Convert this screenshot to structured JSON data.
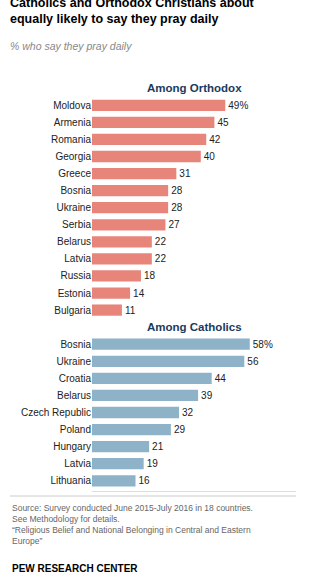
{
  "chart_data": {
    "type": "bar",
    "orientation": "horizontal",
    "title": "Catholics and Orthodox Christians about\nequally likely to say they pray daily",
    "subtitle": "% who say they pray daily",
    "annotations": [
      "Source: Survey conducted June 2015-July 2016 in 18 countries.\nSee Methodology for details.\n“Religious Belief and National Belonging in Central and Eastern\nEurope”",
      "PEW RESEARCH CENTER"
    ],
    "categories": [
      "Moldova",
      "Armenia",
      "Romania",
      "Georgia",
      "Greece",
      "Bosnia",
      "Ukraine",
      "Serbia",
      "Belarus",
      "Latvia",
      "Russia",
      "Estonia",
      "Bulgaria",
      "Bosnia",
      "Ukraine",
      "Croatia",
      "Belarus",
      "Czech Republic",
      "Poland",
      "Hungary",
      "Latvia",
      "Lithuania"
    ],
    "series": [
      {
        "name": "Among Orthodox",
        "color": "#E8857A",
        "values": [
          49,
          45,
          42,
          40,
          31,
          28,
          28,
          27,
          22,
          22,
          18,
          14,
          11,
          null,
          null,
          null,
          null,
          null,
          null,
          null,
          null,
          null
        ],
        "value_labels": [
          "49%",
          "45",
          "42",
          "40",
          "31",
          "28",
          "28",
          "27",
          "22",
          "22",
          "18",
          "14",
          "11",
          null,
          null,
          null,
          null,
          null,
          null,
          null,
          null,
          null
        ]
      },
      {
        "name": "Among Catholics",
        "color": "#8EB3C8",
        "values": [
          null,
          null,
          null,
          null,
          null,
          null,
          null,
          null,
          null,
          null,
          null,
          null,
          null,
          58,
          56,
          44,
          39,
          32,
          29,
          21,
          19,
          16
        ],
        "value_labels": [
          null,
          null,
          null,
          null,
          null,
          null,
          null,
          null,
          null,
          null,
          null,
          null,
          null,
          "58%",
          "56",
          "44",
          "39",
          "32",
          "29",
          "21",
          "19",
          "16"
        ]
      }
    ],
    "xlim": [
      0,
      75
    ],
    "data_labels": true,
    "tick_labels": "y",
    "grid": false
  }
}
